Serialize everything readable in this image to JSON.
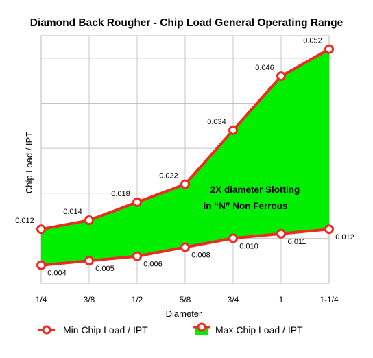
{
  "chart_data": {
    "type": "area",
    "title": "Diamond Back Rougher - Chip Load General Operating Range",
    "xlabel": "Diameter",
    "ylabel": "Chip Load / IPT",
    "categories": [
      "1/4",
      "3/8",
      "1/2",
      "5/8",
      "3/4",
      "1",
      "1-1/4"
    ],
    "ylim": [
      0,
      0.055
    ],
    "grid": true,
    "legend_position": "bottom",
    "series": [
      {
        "name": "Min Chip Load / IPT",
        "values": [
          0.004,
          0.005,
          0.006,
          0.008,
          0.01,
          0.011,
          0.012
        ],
        "labels": [
          "0.004",
          "0.005",
          "0.006",
          "0.008",
          "0.010",
          "0.011",
          "0.012"
        ],
        "color": "#ee2a24"
      },
      {
        "name": "Max Chip Load / IPT",
        "values": [
          0.012,
          0.014,
          0.018,
          0.022,
          0.034,
          0.046,
          0.052
        ],
        "labels": [
          "0.012",
          "0.014",
          "0.018",
          "0.022",
          "0.034",
          "0.046",
          "0.052"
        ],
        "color": "#ee2a24",
        "fill": "#00ee00"
      }
    ],
    "annotation": {
      "line1": "2X diameter Slotting",
      "line2": "in “N” Non Ferrous"
    }
  }
}
